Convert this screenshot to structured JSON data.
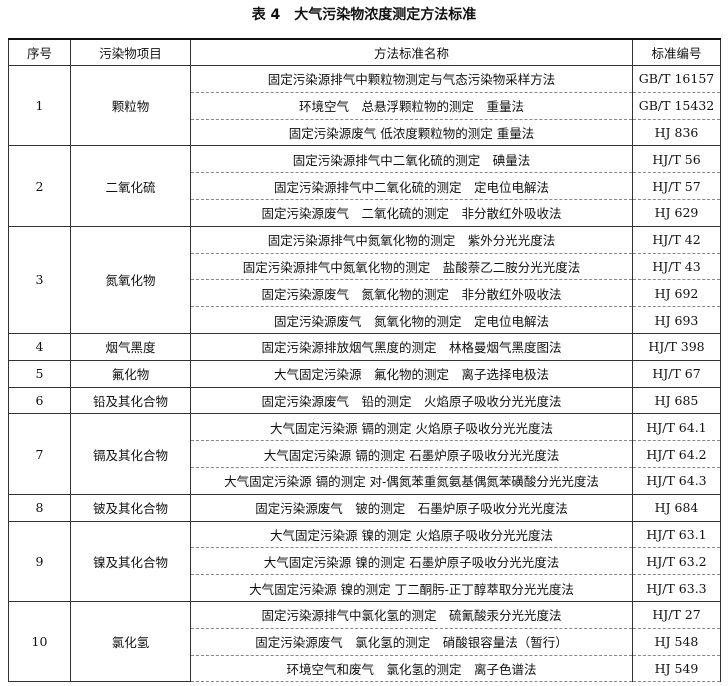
{
  "title": "表 4　大气污染物浓度测定方法标准",
  "header": [
    "序号",
    "污染物项目",
    "方法标准名称",
    "标准编号"
  ],
  "groups": [
    {
      "index": "1",
      "pollutant": "颗粒物",
      "methods": [
        {
          "name": "固定污染源排气中颗粒物测定与气态污染物采样方法",
          "code": "GB/T 16157"
        },
        {
          "name": "环境空气　总悬浮颗粒物的测定　重量法",
          "code": "GB/T 15432"
        },
        {
          "name": "固定污染源废气 低浓度颗粒物的测定 重量法",
          "code": "HJ 836"
        }
      ]
    },
    {
      "index": "2",
      "pollutant": "二氧化硫",
      "methods": [
        {
          "name": "固定污染源排气中二氧化硫的测定　碘量法",
          "code": "HJ/T 56"
        },
        {
          "name": "固定污染源排气中二氧化硫的测定　定电位电解法",
          "code": "HJ/T 57"
        },
        {
          "name": "固定污染源废气　二氧化硫的测定　非分散红外吸收法",
          "code": "HJ 629"
        }
      ]
    },
    {
      "index": "3",
      "pollutant": "氮氧化物",
      "methods": [
        {
          "name": "固定污染源排气中氮氧化物的测定　紫外分光光度法",
          "code": "HJ/T 42"
        },
        {
          "name": "固定污染源排气中氮氧化物的测定　盐酸萘乙二胺分光光度法",
          "code": "HJ/T 43"
        },
        {
          "name": "固定污染源废气　氮氧化物的测定　非分散红外吸收法",
          "code": "HJ 692"
        },
        {
          "name": "固定污染源废气　氮氧化物的测定　定电位电解法",
          "code": "HJ 693"
        }
      ]
    },
    {
      "index": "4",
      "pollutant": "烟气黑度",
      "methods": [
        {
          "name": "固定污染源排放烟气黑度的测定　林格曼烟气黑度图法",
          "code": "HJ/T 398"
        }
      ]
    },
    {
      "index": "5",
      "pollutant": "氟化物",
      "methods": [
        {
          "name": "大气固定污染源　氟化物的测定　离子选择电极法",
          "code": "HJ/T 67"
        }
      ]
    },
    {
      "index": "6",
      "pollutant": "铅及其化合物",
      "methods": [
        {
          "name": "固定污染源废气　铅的测定　火焰原子吸收分光光度法",
          "code": "HJ 685"
        }
      ]
    },
    {
      "index": "7",
      "pollutant": "镉及其化合物",
      "methods": [
        {
          "name": "大气固定污染源 镉的测定 火焰原子吸收分光光度法",
          "code": "HJ/T 64.1"
        },
        {
          "name": "大气固定污染源 镉的测定 石墨炉原子吸收分光光度法",
          "code": "HJ/T 64.2"
        },
        {
          "name": "大气固定污染源 镉的测定 对-偶氮苯重氮氨基偶氮苯磺酸分光光度法",
          "code": "HJ/T 64.3"
        }
      ]
    },
    {
      "index": "8",
      "pollutant": "铍及其化合物",
      "methods": [
        {
          "name": "固定污染源废气　铍的测定　石墨炉原子吸收分光光度法",
          "code": "HJ 684"
        }
      ]
    },
    {
      "index": "9",
      "pollutant": "镍及其化合物",
      "methods": [
        {
          "name": "大气固定污染源 镍的测定 火焰原子吸收分光光度法",
          "code": "HJ/T 63.1"
        },
        {
          "name": "大气固定污染源 镍的测定 石墨炉原子吸收分光光度法",
          "code": "HJ/T 63.2"
        },
        {
          "name": "大气固定污染源 镍的测定 丁二酮肟-正丁醇萃取分光光度法",
          "code": "HJ/T 63.3"
        }
      ]
    },
    {
      "index": "10",
      "pollutant": "氯化氢",
      "methods": [
        {
          "name": "固定污染源排气中氯化氢的测定　硫氰酸汞分光光度法",
          "code": "HJ/T 27"
        },
        {
          "name": "固定污染源废气　氯化氢的测定　硝酸银容量法（暂行）",
          "code": "HJ 548"
        },
        {
          "name": "环境空气和废气　氯化氢的测定　离子色谱法",
          "code": "HJ 549"
        }
      ]
    }
  ]
}
